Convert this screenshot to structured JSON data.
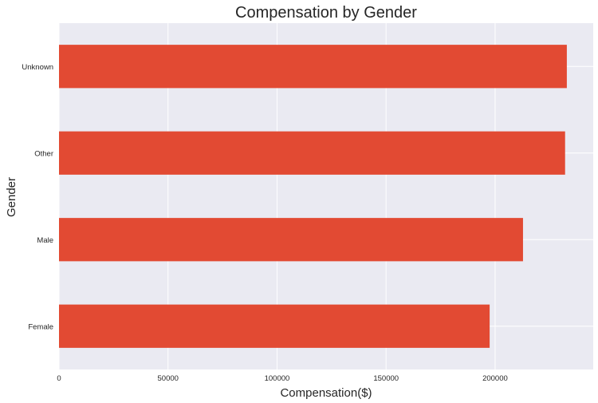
{
  "chart_data": {
    "type": "bar",
    "orientation": "horizontal",
    "title": "Compensation by Gender",
    "xlabel": "Compensation($)",
    "ylabel": "Gender",
    "categories": [
      "Female",
      "Male",
      "Other",
      "Unknown"
    ],
    "values": [
      197500,
      212800,
      232100,
      232900
    ],
    "xlim": [
      0,
      245000
    ],
    "xticks": [
      0,
      50000,
      100000,
      150000,
      200000
    ],
    "xtick_labels": [
      "0",
      "50000",
      "100000",
      "150000",
      "200000"
    ],
    "grid": true,
    "legend": "none",
    "colors": {
      "bar": "#E24A33",
      "plot_background": "#EAEAF2",
      "grid": "#ffffff",
      "text": "#262626"
    }
  }
}
